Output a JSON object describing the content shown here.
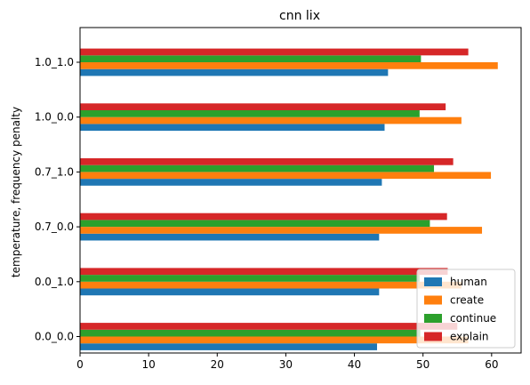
{
  "chart_data": {
    "type": "bar",
    "orientation": "horizontal",
    "title": "cnn lix",
    "xlabel": "",
    "ylabel": "temperature, frequency penalty",
    "categories": [
      "0.0_0.0",
      "0.0_1.0",
      "0.7_0.0",
      "0.7_1.0",
      "1.0_0.0",
      "1.0_1.0"
    ],
    "xlim": [
      0,
      64.3
    ],
    "xticks": [
      0,
      10,
      20,
      30,
      40,
      50,
      60
    ],
    "grid": false,
    "legend_position": "lower-right",
    "series": [
      {
        "name": "human",
        "color": "#1f77b4",
        "values": [
          43.3,
          43.6,
          43.6,
          44.0,
          44.4,
          44.9
        ]
      },
      {
        "name": "create",
        "color": "#ff7f0e",
        "values": [
          56.6,
          55.6,
          58.6,
          59.9,
          55.6,
          60.9
        ]
      },
      {
        "name": "continue",
        "color": "#2ca02c",
        "values": [
          49.6,
          49.5,
          51.0,
          51.6,
          49.5,
          49.7
        ]
      },
      {
        "name": "explain",
        "color": "#d62728",
        "values": [
          55.0,
          53.6,
          53.5,
          54.4,
          53.3,
          56.6
        ]
      }
    ]
  }
}
